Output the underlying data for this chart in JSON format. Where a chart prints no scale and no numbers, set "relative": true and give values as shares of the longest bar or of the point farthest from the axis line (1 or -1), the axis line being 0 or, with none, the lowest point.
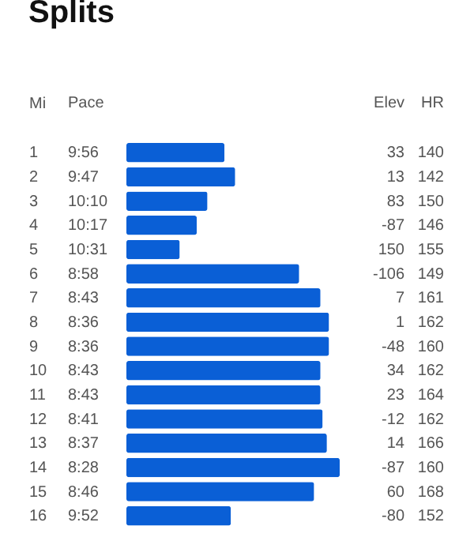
{
  "chart_data": [
    {
      "type": "bar",
      "orientation": "horizontal",
      "relative": true,
      "title": "Splits",
      "ylabel": "Mi",
      "color": "#0a5fd6",
      "categories": [
        "1",
        "2",
        "3",
        "4",
        "5",
        "6",
        "7",
        "8",
        "9",
        "10",
        "11",
        "12",
        "13",
        "14",
        "15",
        "16"
      ],
      "values": [
        0.46,
        0.51,
        0.38,
        0.33,
        0.25,
        0.81,
        0.91,
        0.95,
        0.95,
        0.91,
        0.91,
        0.92,
        0.94,
        1,
        0.88,
        0.49
      ]
    },
    {
      "type": "other",
      "title": "Pace",
      "data_labels": true,
      "values": [
        9.933,
        9.783,
        10.167,
        10.283,
        10.517,
        8.967,
        8.717,
        8.6,
        8.6,
        8.717,
        8.717,
        8.683,
        8.617,
        8.467,
        8.767,
        9.867
      ],
      "value_labels": [
        "9:56",
        "9:47",
        "10:10",
        "10:17",
        "10:31",
        "8:58",
        "8:43",
        "8:36",
        "8:36",
        "8:43",
        "8:43",
        "8:41",
        "8:37",
        "8:28",
        "8:46",
        "9:52"
      ]
    },
    {
      "type": "other",
      "title": "Elev",
      "data_labels": true,
      "values": [
        33,
        13,
        83,
        -87,
        150,
        -106,
        7,
        1,
        -48,
        34,
        23,
        -12,
        14,
        -87,
        60,
        -80
      ]
    },
    {
      "type": "other",
      "title": "HR",
      "data_labels": true,
      "values": [
        140,
        142,
        150,
        146,
        155,
        149,
        161,
        162,
        160,
        162,
        164,
        162,
        166,
        160,
        168,
        152
      ]
    }
  ]
}
